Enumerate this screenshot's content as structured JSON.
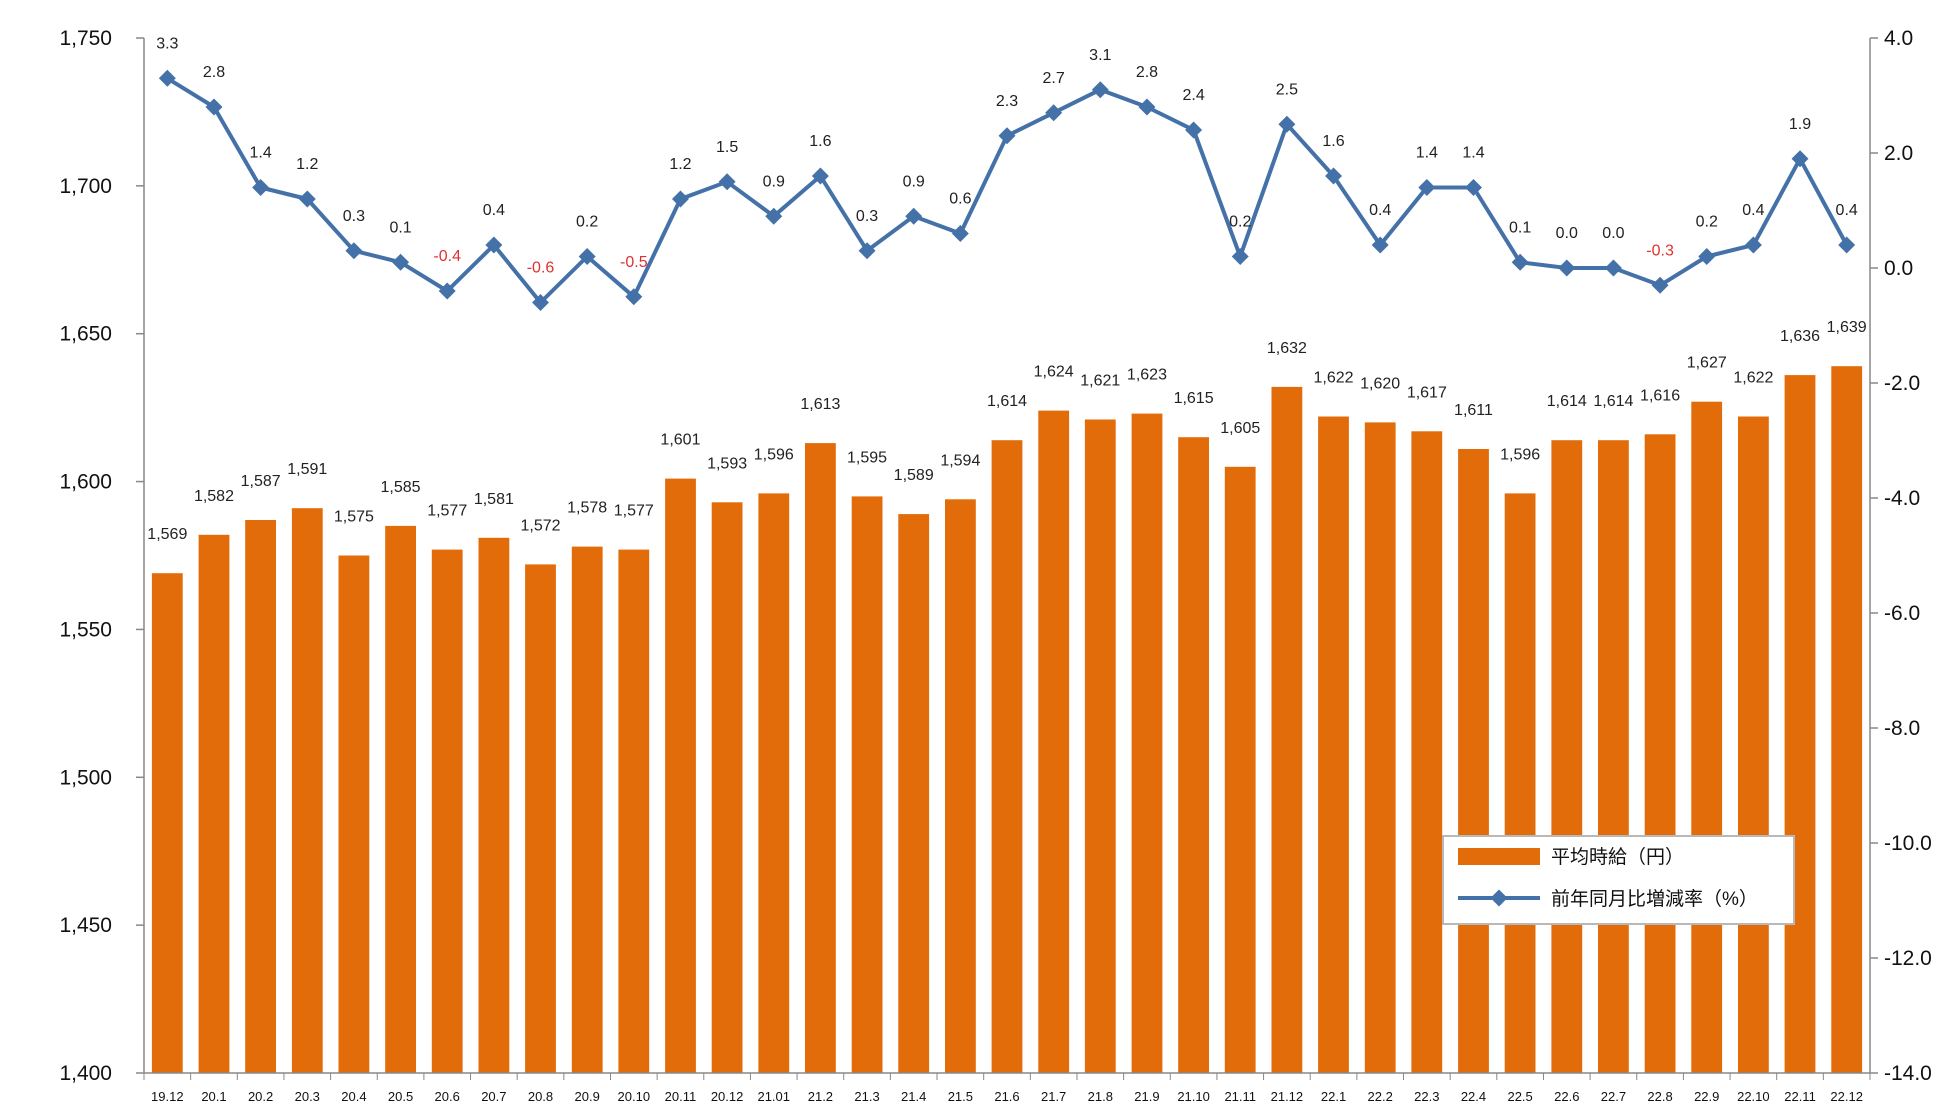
{
  "chart_data": {
    "type": "bar",
    "categories": [
      "19.12",
      "20.1",
      "20.2",
      "20.3",
      "20.4",
      "20.5",
      "20.6",
      "20.7",
      "20.8",
      "20.9",
      "20.10",
      "20.11",
      "20.12",
      "21.01",
      "21.2",
      "21.3",
      "21.4",
      "21.5",
      "21.6",
      "21.7",
      "21.8",
      "21.9",
      "21.10",
      "21.11",
      "21.12",
      "22.1",
      "22.2",
      "22.3",
      "22.4",
      "22.5",
      "22.6",
      "22.7",
      "22.8",
      "22.9",
      "22.10",
      "22.11",
      "22.12"
    ],
    "series": [
      {
        "name": "平均時給（円）",
        "type": "bar",
        "axis": "left",
        "color": "#e36c0a",
        "values": [
          1569,
          1582,
          1587,
          1591,
          1575,
          1585,
          1577,
          1581,
          1572,
          1578,
          1577,
          1601,
          1593,
          1596,
          1613,
          1595,
          1589,
          1594,
          1614,
          1624,
          1621,
          1623,
          1615,
          1605,
          1632,
          1622,
          1620,
          1617,
          1611,
          1596,
          1614,
          1614,
          1616,
          1627,
          1622,
          1636,
          1639
        ],
        "labels": [
          "1,569",
          "1,582",
          "1,587",
          "1,591",
          "1,575",
          "1,585",
          "1,577",
          "1,581",
          "1,572",
          "1,578",
          "1,577",
          "1,601",
          "1,593",
          "1,596",
          "1,613",
          "1,595",
          "1,589",
          "1,594",
          "1,614",
          "1,624",
          "1,621",
          "1,623",
          "1,615",
          "1,605",
          "1,632",
          "1,622",
          "1,620",
          "1,617",
          "1,611",
          "1,596",
          "1,614",
          "1,614",
          "1,616",
          "1,627",
          "1,622",
          "1,636",
          "1,639"
        ]
      },
      {
        "name": "前年同月比増減率（%）",
        "type": "line",
        "axis": "right",
        "color": "#4472a8",
        "values": [
          3.3,
          2.8,
          1.4,
          1.2,
          0.3,
          0.1,
          -0.4,
          0.4,
          -0.6,
          0.2,
          -0.5,
          1.2,
          1.5,
          0.9,
          1.6,
          0.3,
          0.9,
          0.6,
          2.3,
          2.7,
          3.1,
          2.8,
          2.4,
          0.2,
          2.5,
          1.6,
          0.4,
          1.4,
          1.4,
          0.1,
          0.0,
          0.0,
          -0.3,
          0.2,
          0.4,
          1.9,
          0.4
        ],
        "labels": [
          "3.3",
          "2.8",
          "1.4",
          "1.2",
          "0.3",
          "0.1",
          "-0.4",
          "0.4",
          "-0.6",
          "0.2",
          "-0.5",
          "1.2",
          "1.5",
          "0.9",
          "1.6",
          "0.3",
          "0.9",
          "0.6",
          "2.3",
          "2.7",
          "3.1",
          "2.8",
          "2.4",
          "0.2",
          "2.5",
          "1.6",
          "0.4",
          "1.4",
          "1.4",
          "0.1",
          "0.0",
          "0.0",
          "-0.3",
          "0.2",
          "0.4",
          "1.9",
          "0.4"
        ],
        "negative_label_color": "#e03030"
      }
    ],
    "y_left": {
      "lim": [
        1400,
        1750
      ],
      "ticks": [
        1400,
        1450,
        1500,
        1550,
        1600,
        1650,
        1700,
        1750
      ],
      "tick_labels": [
        "1,400",
        "1,450",
        "1,500",
        "1,550",
        "1,600",
        "1,650",
        "1,700",
        "1,750"
      ]
    },
    "y_right": {
      "lim": [
        -14,
        4
      ],
      "ticks": [
        -14,
        -12,
        -10,
        -8,
        -6,
        -4,
        -2,
        0,
        2,
        4
      ],
      "tick_labels": [
        "-14.0",
        "-12.0",
        "-10.0",
        "-8.0",
        "-6.0",
        "-4.0",
        "-2.0",
        "0.0",
        "2.0",
        "4.0"
      ],
      "negative_tick_color": "#e03030"
    },
    "legend": {
      "placement": "bottom-right",
      "entries": [
        "平均時給（円）",
        "前年同月比増減率（%）"
      ]
    },
    "grid": false
  }
}
